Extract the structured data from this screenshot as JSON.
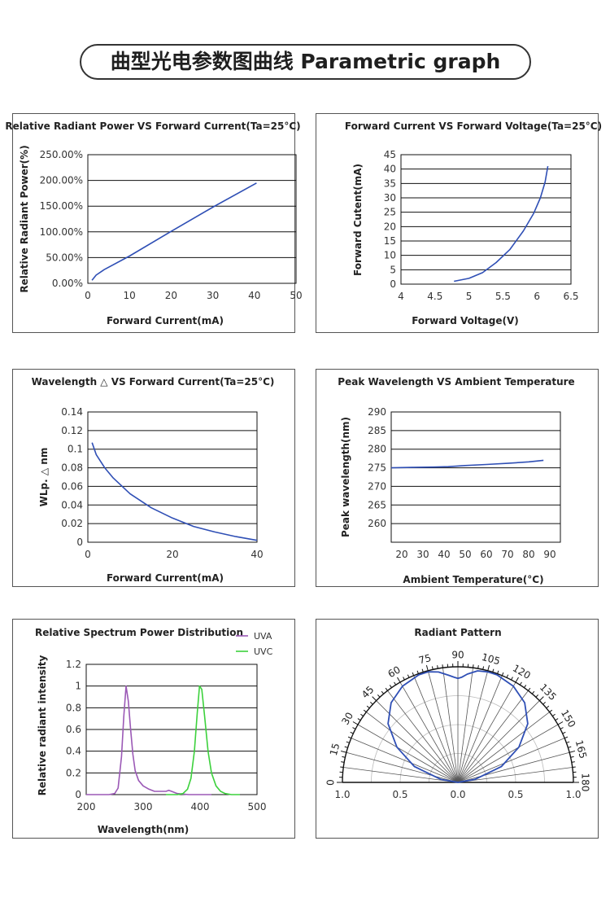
{
  "page": {
    "title": "曲型光电参数图曲线 Parametric graph"
  },
  "chart_data": [
    {
      "id": "power",
      "type": "line",
      "title": "Relative Radiant Power VS Forward Current(Ta=25°C)",
      "xlabel": "Forward Current(mA)",
      "ylabel": "Relative Radiant Power(%)",
      "xlim": [
        0,
        50
      ],
      "ylim": [
        0,
        250
      ],
      "xticks": [
        0,
        10,
        20,
        30,
        40,
        50
      ],
      "yticks": [
        0,
        50,
        100,
        150,
        200,
        250
      ],
      "yticklabels": [
        "0.00%",
        "50.00%",
        "100.00%",
        "150.00%",
        "200.00%",
        "250.00%"
      ],
      "grid": "horizontal",
      "color": "#2f4fb5",
      "series": [
        {
          "x": [
            1,
            2,
            4,
            10,
            20,
            30,
            40.5
          ],
          "y": [
            6,
            16,
            27,
            53,
            101,
            148,
            195
          ]
        }
      ]
    },
    {
      "id": "iv",
      "type": "line",
      "title": "Forward Current VS Forward Voltage(Ta=25°C)",
      "xlabel": "Forward Voltage(V)",
      "ylabel": "Forward Cutent(mA)",
      "xlim": [
        4,
        6.5
      ],
      "ylim": [
        0,
        45
      ],
      "xticks": [
        4,
        4.5,
        5,
        5.5,
        6,
        6.5
      ],
      "yticks": [
        0,
        5,
        10,
        15,
        20,
        25,
        30,
        35,
        40,
        45
      ],
      "grid": "horizontal",
      "color": "#2f4fb5",
      "series": [
        {
          "x": [
            4.78,
            5.0,
            5.2,
            5.4,
            5.6,
            5.8,
            5.95,
            6.05,
            6.12,
            6.16
          ],
          "y": [
            1,
            2,
            4,
            7.5,
            12,
            18.5,
            24.5,
            30,
            35.5,
            41
          ]
        }
      ]
    },
    {
      "id": "wl-current",
      "type": "line",
      "title": "Wavelength △ VS Forward Current(Ta=25°C)",
      "xlabel": "Forward Current(mA)",
      "ylabel": "WLp. △ nm",
      "xlim": [
        0,
        40
      ],
      "ylim": [
        0,
        0.14
      ],
      "xticks": [
        0,
        20,
        40
      ],
      "yticks": [
        0,
        0.02,
        0.04,
        0.06,
        0.08,
        0.1,
        0.12,
        0.14
      ],
      "grid": "horizontal",
      "color": "#2f4fb5",
      "series": [
        {
          "x": [
            1,
            2,
            4,
            6,
            10,
            15,
            20,
            25,
            30,
            35,
            40
          ],
          "y": [
            0.107,
            0.094,
            0.08,
            0.069,
            0.052,
            0.037,
            0.026,
            0.017,
            0.011,
            0.006,
            0.002
          ]
        }
      ]
    },
    {
      "id": "wl-temp",
      "type": "line",
      "title": "Peak Wavelength VS Ambient Temperature",
      "xlabel": "Ambient Temperature(°C)",
      "ylabel": "Peak wavelength(nm)",
      "xlim": [
        15,
        95
      ],
      "ylim": [
        255,
        290
      ],
      "xticks": [
        20,
        30,
        40,
        50,
        60,
        70,
        80,
        90
      ],
      "yticks": [
        260,
        265,
        270,
        275,
        280,
        285,
        290
      ],
      "grid": "horizontal",
      "color": "#2f4fb5",
      "series": [
        {
          "x": [
            15,
            25,
            35,
            42,
            50,
            60,
            70,
            80,
            87
          ],
          "y": [
            275,
            275.1,
            275.2,
            275.3,
            275.6,
            275.9,
            276.2,
            276.6,
            277
          ]
        }
      ]
    },
    {
      "id": "spectrum",
      "type": "line",
      "title": "Relative Spectrum Power Distribution",
      "xlabel": "Wavelength(nm)",
      "ylabel": "Relative radiant intensity",
      "xlim": [
        200,
        500
      ],
      "ylim": [
        0,
        1.2
      ],
      "xticks": [
        200,
        300,
        400,
        500
      ],
      "yticks": [
        0,
        0.2,
        0.4,
        0.6,
        0.8,
        1,
        1.2
      ],
      "grid": "horizontal",
      "legend": "top-right",
      "series": [
        {
          "name": "UVA",
          "color": "#9b59b6",
          "x": [
            200,
            240,
            250,
            256,
            262,
            266,
            270,
            274,
            278,
            282,
            286,
            292,
            300,
            310,
            320,
            330,
            340,
            345,
            350,
            360,
            380,
            400,
            420
          ],
          "y": [
            0,
            0,
            0.01,
            0.06,
            0.35,
            0.72,
            1.0,
            0.86,
            0.6,
            0.37,
            0.22,
            0.13,
            0.08,
            0.05,
            0.03,
            0.03,
            0.03,
            0.04,
            0.03,
            0.01,
            0,
            0,
            0
          ]
        },
        {
          "name": "UVC",
          "color": "#3cd13c",
          "x": [
            340,
            360,
            370,
            378,
            384,
            390,
            395,
            399,
            403,
            408,
            414,
            420,
            428,
            436,
            444,
            455,
            470
          ],
          "y": [
            0,
            0,
            0.01,
            0.05,
            0.15,
            0.4,
            0.75,
            1.0,
            0.97,
            0.72,
            0.4,
            0.2,
            0.08,
            0.03,
            0.01,
            0,
            0
          ]
        }
      ]
    },
    {
      "id": "radiant",
      "type": "polar",
      "title": "Radiant Pattern",
      "angle_range": [
        0,
        180
      ],
      "angle_ticks": [
        0,
        15,
        30,
        45,
        60,
        75,
        90,
        105,
        120,
        135,
        150,
        165,
        180
      ],
      "radius_ticks": [
        0.5,
        1.0
      ],
      "radius_labels": [
        "1.0",
        "0.5",
        "0.0",
        "0.5",
        "1.0"
      ],
      "color": "#2f4fb5",
      "series": [
        {
          "angle": [
            0,
            10,
            20,
            30,
            40,
            50,
            60,
            70,
            75,
            80,
            85,
            88,
            90,
            92,
            95,
            100,
            105,
            110,
            120,
            130,
            140,
            150,
            160,
            170,
            180
          ],
          "r": [
            0,
            0.15,
            0.4,
            0.61,
            0.79,
            0.9,
            0.96,
            0.99,
            0.99,
            0.97,
            0.93,
            0.91,
            0.9,
            0.91,
            0.94,
            0.98,
            0.99,
            0.99,
            0.96,
            0.9,
            0.79,
            0.61,
            0.4,
            0.15,
            0
          ]
        }
      ]
    }
  ]
}
